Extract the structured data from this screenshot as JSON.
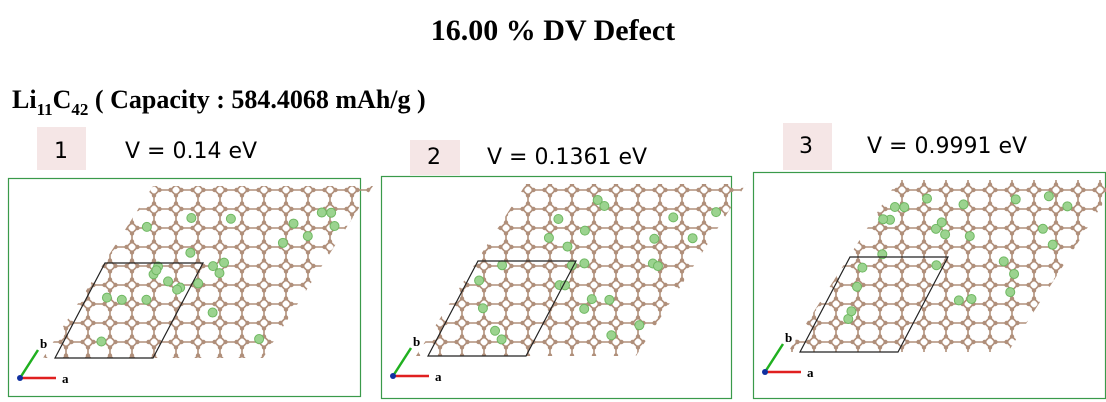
{
  "header": {
    "title": "16.00 % DV Defect",
    "formula": {
      "li": "Li",
      "li_count": "11",
      "c": "C",
      "c_count": "42",
      "rest": " ( Capacity : 584.4068 mAh/g )"
    }
  },
  "panels": [
    {
      "number": "1",
      "voltage": "V = 0.14 eV",
      "axis_a": "a",
      "axis_b": "b"
    },
    {
      "number": "2",
      "voltage": "V = 0.1361 eV",
      "axis_a": "a",
      "axis_b": "b"
    },
    {
      "number": "3",
      "voltage": "V = 0.9991 eV",
      "axis_a": "a",
      "axis_b": "b"
    }
  ]
}
